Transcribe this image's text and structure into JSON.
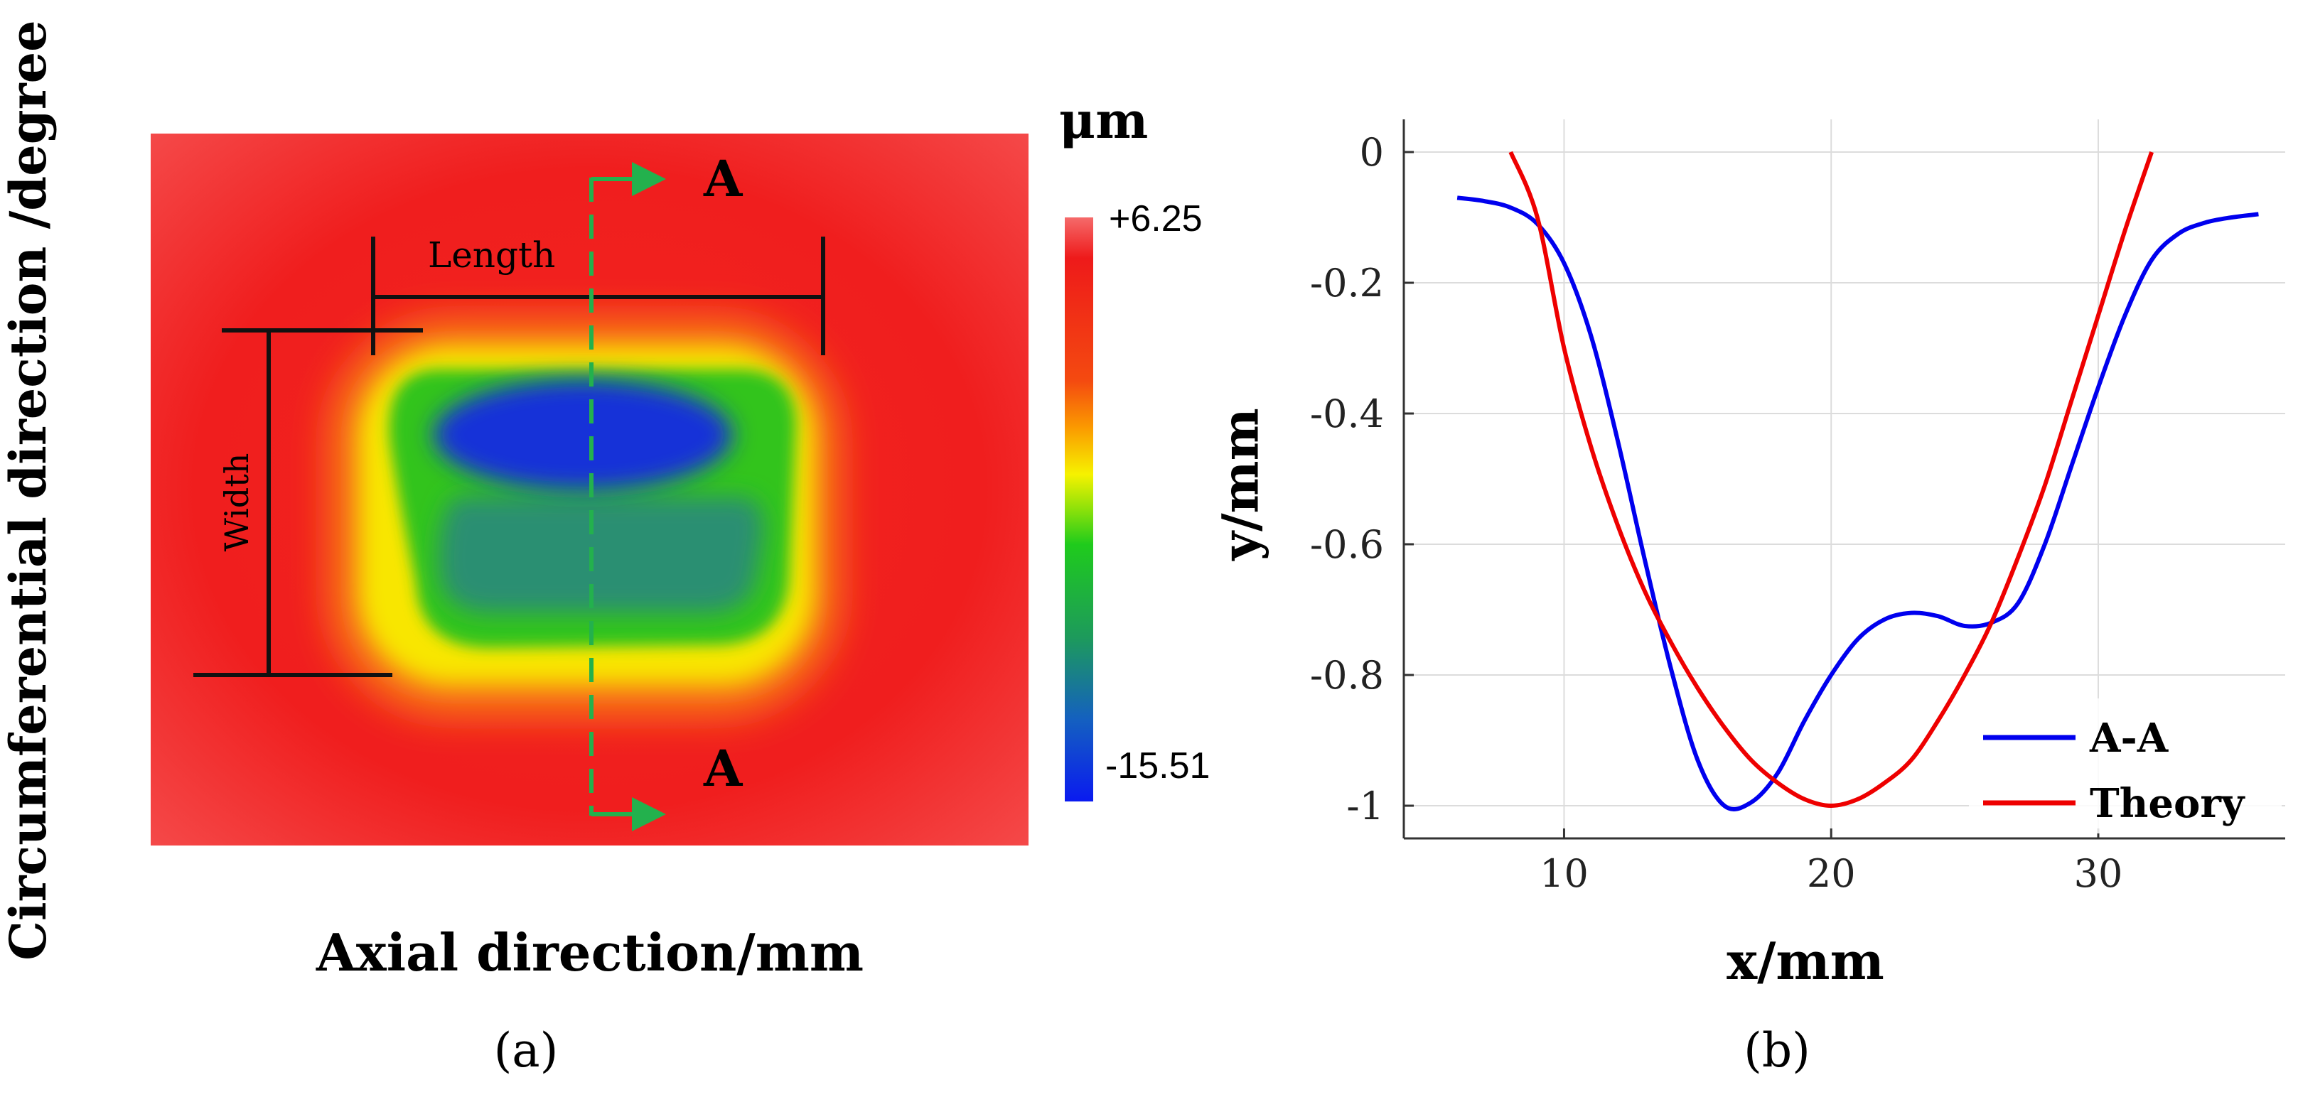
{
  "panel_a": {
    "y_axis_label": "Circumferential direction /degree",
    "x_axis_label": "Axial direction/mm",
    "panel_label": "(a)",
    "unit_label": "μm",
    "colorbar_max_label": "+6.25",
    "colorbar_min_label": "-15.51",
    "colorbar_range": [
      -15.51,
      6.25
    ],
    "length_label": "Length",
    "width_label": "Width",
    "section_label_top": "A",
    "section_label_bottom": "A",
    "colors": {
      "background": "#f01e1e",
      "dent_outer": "#fbe000",
      "dent_ring": "#2fc21a",
      "dent_deep": "#1633d8",
      "dent_mid": "#2a8f72",
      "arrow": "#23b14d"
    }
  },
  "chart_data": {
    "type": "line",
    "title": "",
    "panel_label": "(b)",
    "xlabel": "x/mm",
    "ylabel": "y/mm",
    "xlim": [
      4,
      37
    ],
    "ylim": [
      -1.05,
      0.05
    ],
    "xticks": [
      10,
      20,
      30
    ],
    "yticks": [
      0,
      -0.2,
      -0.4,
      -0.6,
      -0.8,
      -1
    ],
    "ytick_labels": [
      "0",
      "-0.2",
      "-0.4",
      "-0.6",
      "-0.8",
      "-1"
    ],
    "grid": true,
    "legend_position": "bottom-right",
    "series": [
      {
        "name": "A-A",
        "color": "#0000ee",
        "x": [
          6,
          7,
          8,
          9,
          10,
          11,
          12,
          13,
          14,
          15,
          16,
          17,
          18,
          19,
          20,
          21,
          22,
          23,
          24,
          25,
          26,
          27,
          28,
          29,
          30,
          31,
          32,
          33,
          34,
          35,
          36
        ],
        "y": [
          -0.07,
          -0.075,
          -0.085,
          -0.11,
          -0.17,
          -0.28,
          -0.44,
          -0.62,
          -0.79,
          -0.93,
          -1.0,
          -0.995,
          -0.95,
          -0.87,
          -0.8,
          -0.745,
          -0.715,
          -0.705,
          -0.71,
          -0.725,
          -0.72,
          -0.69,
          -0.6,
          -0.48,
          -0.36,
          -0.25,
          -0.165,
          -0.125,
          -0.108,
          -0.1,
          -0.095
        ]
      },
      {
        "name": "Theory",
        "color": "#ee0000",
        "x": [
          8,
          9,
          10,
          11,
          12,
          13,
          14,
          15,
          16,
          17,
          18,
          19,
          20,
          21,
          22,
          23,
          24,
          25,
          26,
          27,
          28,
          29,
          30,
          31,
          32
        ],
        "y": [
          0,
          -0.1,
          -0.3,
          -0.45,
          -0.57,
          -0.67,
          -0.75,
          -0.82,
          -0.88,
          -0.93,
          -0.965,
          -0.99,
          -1.0,
          -0.99,
          -0.965,
          -0.93,
          -0.87,
          -0.8,
          -0.72,
          -0.62,
          -0.51,
          -0.38,
          -0.25,
          -0.12,
          0
        ]
      }
    ]
  }
}
